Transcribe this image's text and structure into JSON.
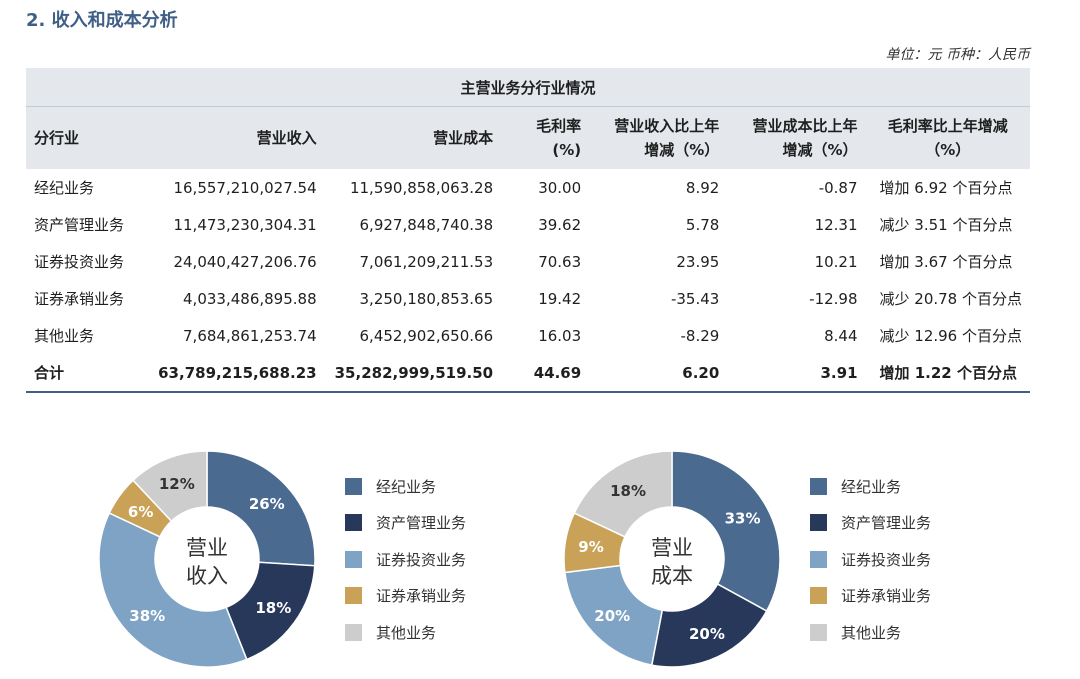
{
  "section_title": "2. 收入和成本分析",
  "unit_note": "单位：元  币种：人民币",
  "table": {
    "caption": "主营业务分行业情况",
    "headers": {
      "segment": "分行业",
      "revenue": "营业收入",
      "cost": "营业成本",
      "margin_l1": "毛利率",
      "margin_l2": "(%)",
      "rev_yoy_l1": "营业收入比上年",
      "rev_yoy_l2": "增减（%）",
      "cost_yoy_l1": "营业成本比上年",
      "cost_yoy_l2": "增减（%）",
      "margin_change": "毛利率比上年增减（%）"
    },
    "rows": [
      {
        "segment": "经纪业务",
        "revenue": "16,557,210,027.54",
        "cost": "11,590,858,063.28",
        "margin": "30.00",
        "rev_yoy": "8.92",
        "cost_yoy": "-0.87",
        "margin_change": "增加 6.92 个百分点"
      },
      {
        "segment": "资产管理业务",
        "revenue": "11,473,230,304.31",
        "cost": "6,927,848,740.38",
        "margin": "39.62",
        "rev_yoy": "5.78",
        "cost_yoy": "12.31",
        "margin_change": "减少 3.51 个百分点"
      },
      {
        "segment": "证券投资业务",
        "revenue": "24,040,427,206.76",
        "cost": "7,061,209,211.53",
        "margin": "70.63",
        "rev_yoy": "23.95",
        "cost_yoy": "10.21",
        "margin_change": "增加 3.67 个百分点"
      },
      {
        "segment": "证券承销业务",
        "revenue": "4,033,486,895.88",
        "cost": "3,250,180,853.65",
        "margin": "19.42",
        "rev_yoy": "-35.43",
        "cost_yoy": "-12.98",
        "margin_change": "减少 20.78 个百分点"
      },
      {
        "segment": "其他业务",
        "revenue": "7,684,861,253.74",
        "cost": "6,452,902,650.66",
        "margin": "16.03",
        "rev_yoy": "-8.29",
        "cost_yoy": "8.44",
        "margin_change": "减少 12.96 个百分点"
      }
    ],
    "total": {
      "segment": "合计",
      "revenue": "63,789,215,688.23",
      "cost": "35,282,999,519.50",
      "margin": "44.69",
      "rev_yoy": "6.20",
      "cost_yoy": "3.91",
      "margin_change": "增加 1.22 个百分点"
    }
  },
  "chart_data": [
    {
      "type": "pie",
      "center_label_lines": [
        "营业",
        "收入"
      ],
      "categories": [
        "经纪业务",
        "资产管理业务",
        "证券投资业务",
        "证券承销业务",
        "其他业务"
      ],
      "values": [
        26,
        18,
        38,
        6,
        12
      ],
      "labels": [
        "26%",
        "18%",
        "38%",
        "6%",
        "12%"
      ],
      "colors": [
        "#4b6a8f",
        "#27385a",
        "#7fa3c4",
        "#c9a258",
        "#cdcdcd"
      ],
      "legend_position": "right"
    },
    {
      "type": "pie",
      "center_label_lines": [
        "营业",
        "成本"
      ],
      "categories": [
        "经纪业务",
        "资产管理业务",
        "证券投资业务",
        "证券承销业务",
        "其他业务"
      ],
      "values": [
        33,
        20,
        20,
        9,
        18
      ],
      "labels": [
        "33%",
        "20%",
        "20%",
        "9%",
        "18%"
      ],
      "colors": [
        "#4b6a8f",
        "#27385a",
        "#7fa3c4",
        "#c9a258",
        "#cdcdcd"
      ],
      "legend_position": "right"
    }
  ]
}
